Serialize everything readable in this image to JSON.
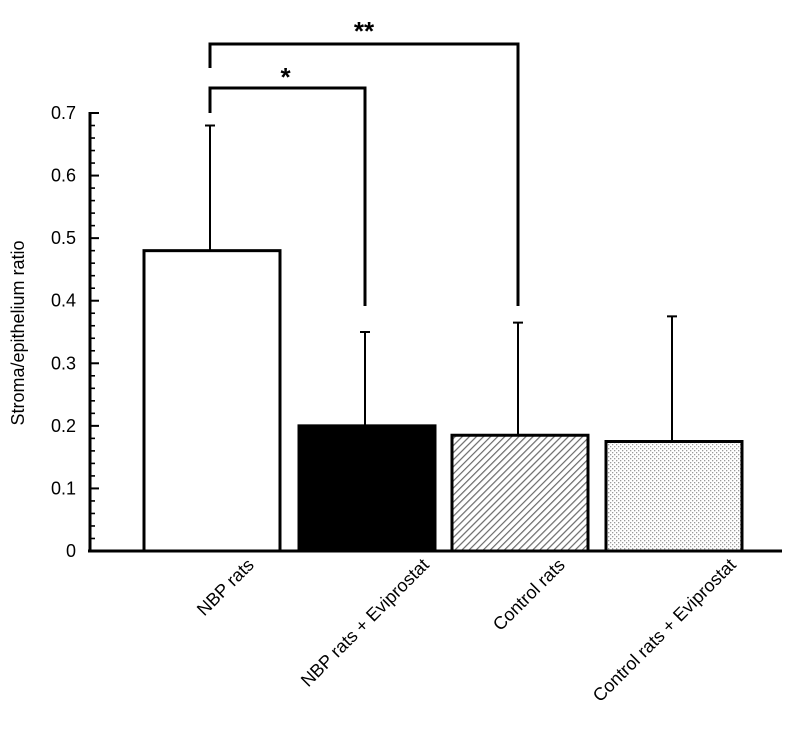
{
  "chart_data": {
    "type": "bar",
    "title": "",
    "xlabel": "",
    "ylabel": "Stroma/epithelium ratio",
    "ylim": [
      0,
      0.7
    ],
    "yticks": [
      "0",
      "0.1",
      "0.2",
      "0.3",
      "0.4",
      "0.5",
      "0.6",
      "0.7"
    ],
    "grid": false,
    "categories": [
      "NBP rats",
      "NBP rats + Eviprostat",
      "Control rats",
      "Control rats + Eviprostat"
    ],
    "values": [
      0.48,
      0.2,
      0.185,
      0.175
    ],
    "error_upper": [
      0.68,
      0.35,
      0.365,
      0.375
    ],
    "fills": [
      "white",
      "black",
      "diagonal-hatch",
      "dotted"
    ],
    "significance": [
      {
        "from": 0,
        "to": 1,
        "label": "*"
      },
      {
        "from": 0,
        "to": 2,
        "label": "**"
      }
    ]
  }
}
